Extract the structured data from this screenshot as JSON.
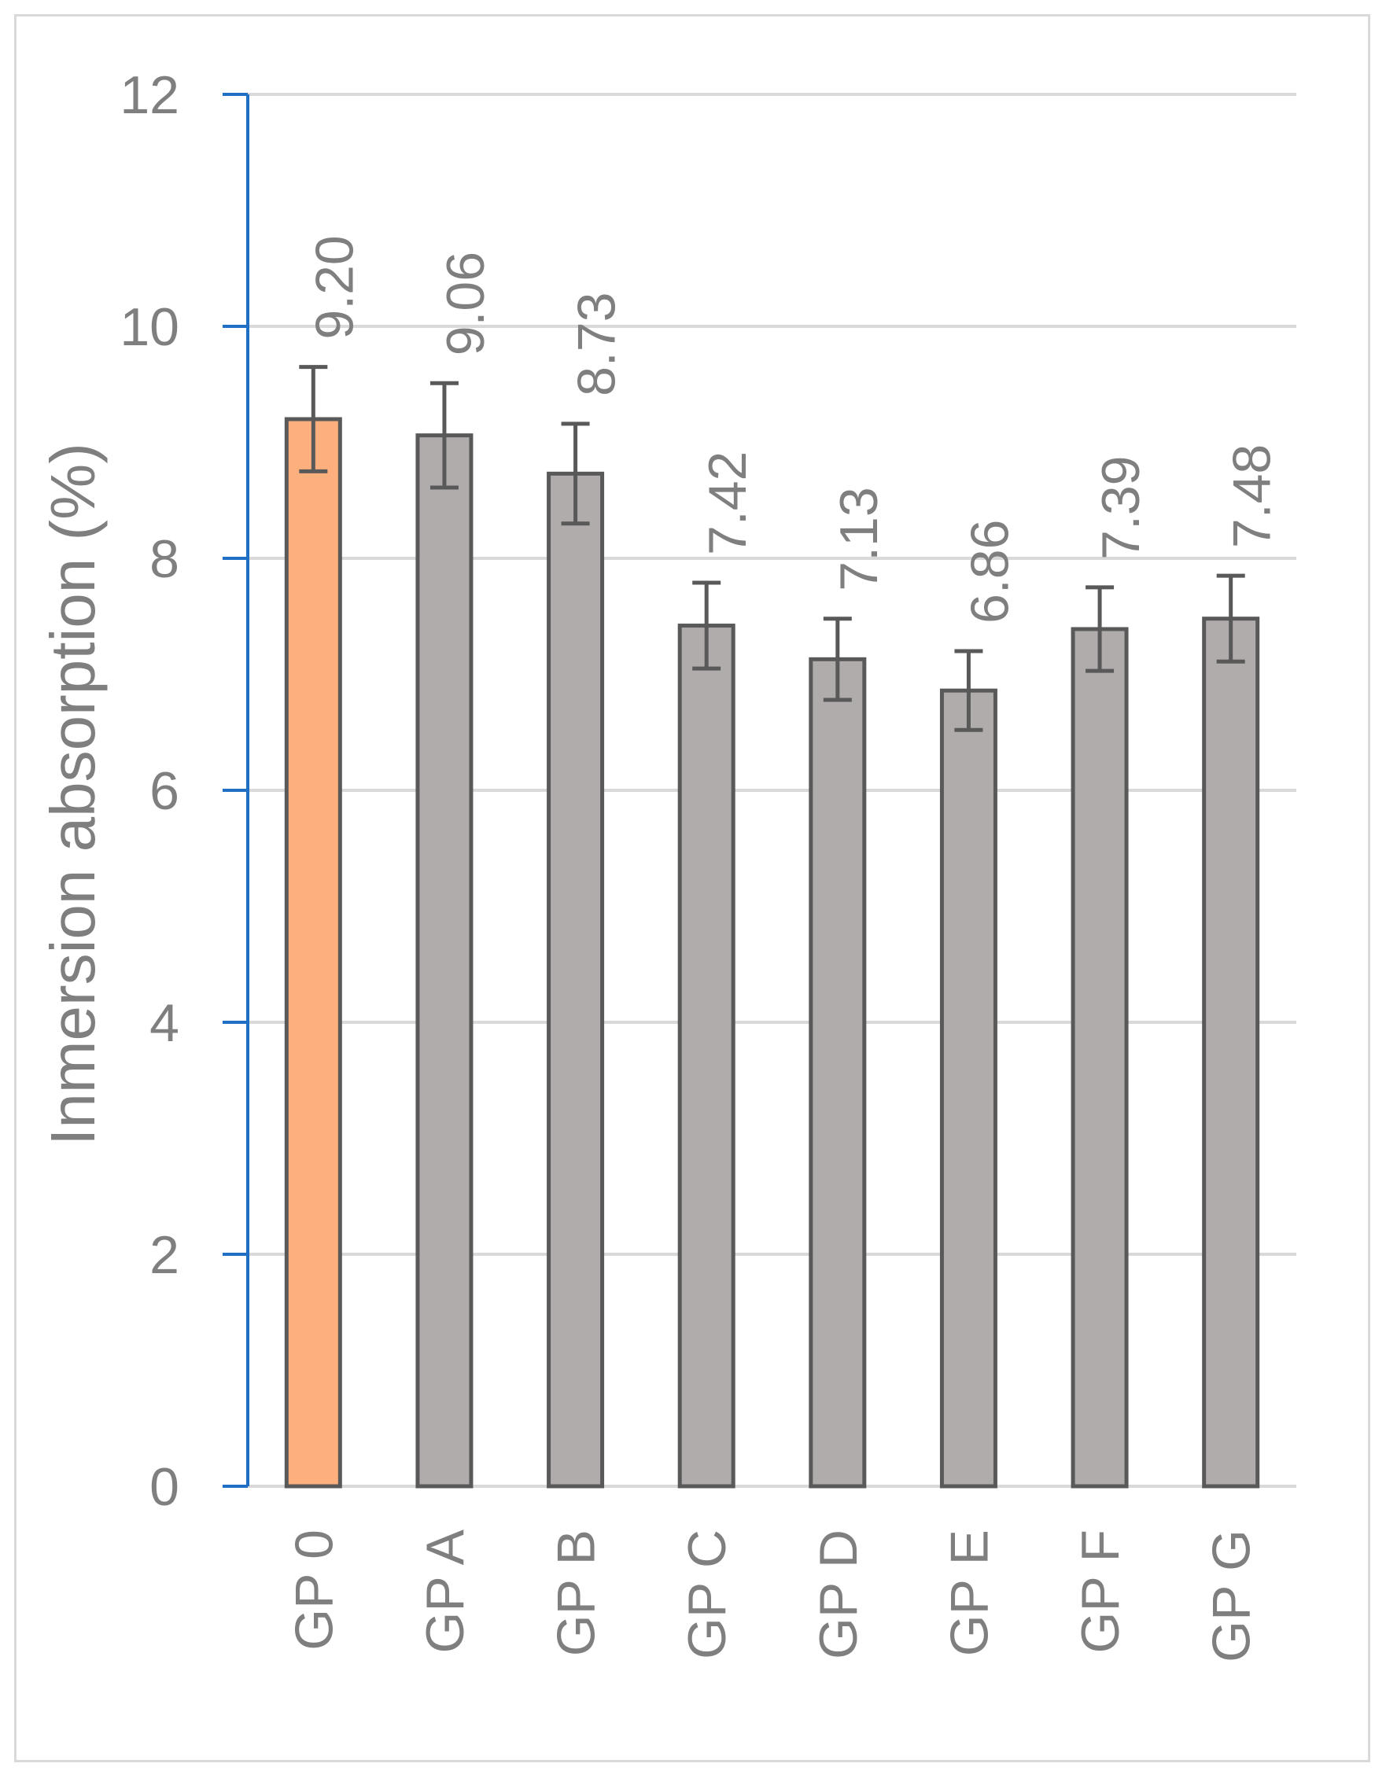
{
  "chart_data": {
    "type": "bar",
    "title": "",
    "xlabel": "",
    "ylabel": "Inmersion absorption (%)",
    "ylim": [
      0,
      12
    ],
    "yticks": [
      0,
      2,
      4,
      6,
      8,
      10,
      12
    ],
    "grid": true,
    "legend": "none",
    "categories": [
      "GP 0",
      "GP A",
      "GP B",
      "GP C",
      "GP D",
      "GP E",
      "GP F",
      "GP G"
    ],
    "values": [
      9.2,
      9.06,
      8.73,
      7.42,
      7.13,
      6.86,
      7.39,
      7.48
    ],
    "value_labels": [
      "9.20",
      "9.06",
      "8.73",
      "7.42",
      "7.13",
      "6.86",
      "7.39",
      "7.48"
    ],
    "error": [
      0.45,
      0.45,
      0.43,
      0.37,
      0.35,
      0.34,
      0.36,
      0.37
    ],
    "colors": {
      "highlight_bar": "#FDB07E",
      "bar": "#B0ACAB",
      "bar_border": "#595959",
      "error_bar": "#595959",
      "grid": "#d9d9d9",
      "axis": "#1f6fc4",
      "text": "#7f7f7f"
    }
  }
}
